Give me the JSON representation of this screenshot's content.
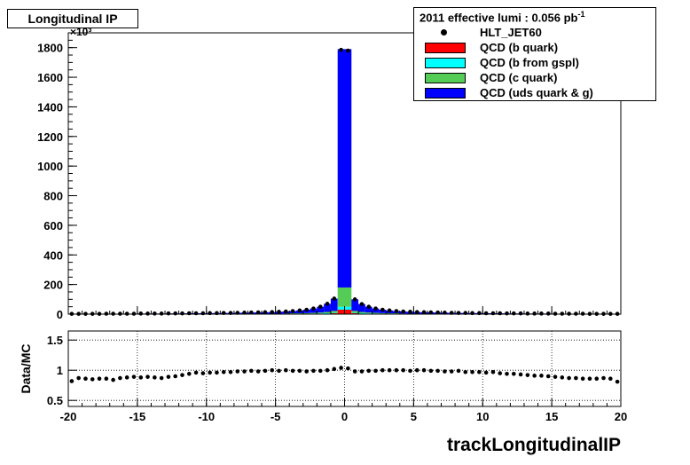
{
  "title": "Longitudinal IP",
  "legend": {
    "header_text": "2011 effective lumi : 0.056  pb",
    "header_exp": "-1",
    "items": [
      {
        "label": "HLT_JET60",
        "kind": "marker",
        "color": "#000000"
      },
      {
        "label": "QCD (b quark)",
        "kind": "fill",
        "color": "#ff0000"
      },
      {
        "label": "QCD (b from gspl)",
        "kind": "fill",
        "color": "#00ffff"
      },
      {
        "label": "QCD (c quark)",
        "kind": "fill",
        "color": "#55cc55"
      },
      {
        "label": "QCD (uds quark & g)",
        "kind": "fill",
        "color": "#0000ff"
      }
    ]
  },
  "chart_data": [
    {
      "type": "bar",
      "subtype": "stacked-histogram-with-data-points",
      "xlabel": "",
      "ylabel": "",
      "y_multiplier": "×10³",
      "ylim": [
        0,
        1900
      ],
      "yticks": [
        0,
        200,
        400,
        600,
        800,
        1000,
        1200,
        1400,
        1600,
        1800
      ],
      "xlim": [
        -20,
        20
      ],
      "log_scale": false,
      "bins": {
        "centers": [
          -19.75,
          -19.25,
          -18.75,
          -18.25,
          -17.75,
          -17.25,
          -16.75,
          -16.25,
          -15.75,
          -15.25,
          -14.75,
          -14.25,
          -13.75,
          -13.25,
          -12.75,
          -12.25,
          -11.75,
          -11.25,
          -10.75,
          -10.25,
          -9.75,
          -9.25,
          -8.75,
          -8.25,
          -7.75,
          -7.25,
          -6.75,
          -6.25,
          -5.75,
          -5.25,
          -4.75,
          -4.25,
          -3.75,
          -3.25,
          -2.75,
          -2.25,
          -1.75,
          -1.25,
          -0.75,
          -0.25,
          0.25,
          0.75,
          1.25,
          1.75,
          2.25,
          2.75,
          3.25,
          3.75,
          4.25,
          4.75,
          5.25,
          5.75,
          6.25,
          6.75,
          7.25,
          7.75,
          8.25,
          8.75,
          9.25,
          9.75,
          10.25,
          10.75,
          11.25,
          11.75,
          12.25,
          12.75,
          13.25,
          13.75,
          14.25,
          14.75,
          15.25,
          15.75,
          16.25,
          16.75,
          17.25,
          17.75,
          18.25,
          18.75,
          19.25,
          19.75
        ],
        "width": 0.5
      },
      "series": [
        {
          "name": "HLT_JET60",
          "style": "points",
          "values": [
            2,
            2,
            2,
            2,
            2,
            3,
            3,
            3,
            3,
            3,
            4,
            4,
            4,
            4,
            5,
            5,
            5,
            6,
            6,
            6,
            7,
            7,
            8,
            8,
            9,
            10,
            11,
            12,
            13,
            14,
            16,
            18,
            21,
            25,
            30,
            38,
            50,
            70,
            105,
            1785,
            1780,
            100,
            68,
            50,
            38,
            30,
            25,
            21,
            18,
            16,
            14,
            13,
            12,
            11,
            10,
            9,
            8,
            8,
            7,
            7,
            6,
            6,
            6,
            5,
            5,
            5,
            4,
            4,
            4,
            4,
            3,
            3,
            3,
            3,
            3,
            2,
            2,
            2,
            2,
            2
          ]
        },
        {
          "name": "QCD (b quark)",
          "style": "stack",
          "color": "#ff0000",
          "values": [
            0,
            0,
            0,
            0,
            0,
            0,
            0,
            0,
            0,
            0,
            0,
            0,
            0,
            0,
            0,
            0,
            0,
            0,
            0,
            0,
            0,
            0,
            0,
            0,
            0,
            0,
            1,
            1,
            1,
            1,
            1,
            1,
            2,
            2,
            2,
            3,
            3,
            4,
            6,
            30,
            30,
            6,
            4,
            3,
            3,
            2,
            2,
            2,
            1,
            1,
            1,
            1,
            1,
            1,
            0,
            0,
            0,
            0,
            0,
            0,
            0,
            0,
            0,
            0,
            0,
            0,
            0,
            0,
            0,
            0,
            0,
            0,
            0,
            0,
            0,
            0,
            0,
            0,
            0,
            0
          ]
        },
        {
          "name": "QCD (b from gspl)",
          "style": "stack",
          "color": "#00ffff",
          "values": [
            0,
            0,
            0,
            0,
            0,
            0,
            0,
            0,
            0,
            0,
            0,
            0,
            0,
            0,
            0,
            0,
            0,
            0,
            0,
            0,
            0,
            0,
            0,
            0,
            0,
            0,
            0,
            0,
            0,
            0,
            0,
            1,
            1,
            1,
            1,
            1,
            2,
            2,
            3,
            20,
            20,
            3,
            2,
            2,
            1,
            1,
            1,
            1,
            1,
            0,
            0,
            0,
            0,
            0,
            0,
            0,
            0,
            0,
            0,
            0,
            0,
            0,
            0,
            0,
            0,
            0,
            0,
            0,
            0,
            0,
            0,
            0,
            0,
            0,
            0,
            0,
            0,
            0,
            0,
            0
          ]
        },
        {
          "name": "QCD (c quark)",
          "style": "stack",
          "color": "#55cc55",
          "values": [
            0,
            0,
            0,
            0,
            0,
            0,
            0,
            0,
            0,
            0,
            0,
            0,
            0,
            1,
            1,
            1,
            1,
            1,
            1,
            1,
            1,
            1,
            1,
            1,
            1,
            1,
            1,
            1,
            2,
            2,
            2,
            2,
            3,
            3,
            4,
            5,
            6,
            9,
            13,
            130,
            130,
            13,
            9,
            6,
            5,
            4,
            3,
            3,
            2,
            2,
            2,
            2,
            1,
            1,
            1,
            1,
            1,
            1,
            1,
            1,
            1,
            1,
            1,
            1,
            1,
            1,
            1,
            1,
            0,
            0,
            0,
            0,
            0,
            0,
            0,
            0,
            0,
            0,
            0,
            0
          ]
        },
        {
          "name": "QCD (uds quark & g)",
          "style": "stack",
          "color": "#0000ff",
          "values": [
            2,
            2,
            2,
            2,
            2,
            3,
            3,
            3,
            3,
            3,
            4,
            4,
            4,
            3,
            4,
            4,
            4,
            5,
            5,
            5,
            6,
            6,
            7,
            7,
            8,
            9,
            9,
            10,
            10,
            11,
            13,
            14,
            15,
            19,
            23,
            29,
            39,
            55,
            83,
            1610,
            1610,
            78,
            53,
            39,
            29,
            23,
            19,
            15,
            14,
            13,
            11,
            10,
            10,
            9,
            9,
            8,
            7,
            7,
            6,
            6,
            5,
            5,
            5,
            4,
            4,
            4,
            3,
            3,
            4,
            4,
            3,
            3,
            3,
            3,
            3,
            2,
            2,
            2,
            2,
            2
          ]
        }
      ]
    },
    {
      "type": "scatter",
      "subtype": "ratio",
      "xlabel": "trackLongitudinalIP",
      "ylabel": "Data/MC",
      "xlim": [
        -20,
        20
      ],
      "ylim": [
        0.4,
        1.65
      ],
      "xticks": [
        -20,
        -15,
        -10,
        -5,
        0,
        5,
        10,
        15,
        20
      ],
      "yticks": [
        0.5,
        1,
        1.5
      ],
      "grid": true,
      "reference_line": 1,
      "series": [
        {
          "name": "Data/MC",
          "values": [
            0.82,
            0.87,
            0.86,
            0.85,
            0.86,
            0.86,
            0.84,
            0.87,
            0.88,
            0.89,
            0.88,
            0.89,
            0.88,
            0.87,
            0.89,
            0.9,
            0.92,
            0.94,
            0.96,
            0.95,
            0.96,
            0.96,
            0.97,
            0.97,
            0.98,
            0.98,
            0.99,
            0.98,
            0.99,
            1.0,
            0.99,
            1.0,
            0.99,
            0.99,
            0.98,
            0.99,
            0.99,
            1.0,
            1.02,
            1.04,
            1.03,
            0.98,
            0.98,
            0.99,
            0.99,
            1.0,
            1.0,
            1.0,
            1.0,
            0.99,
            1.0,
            1.0,
            0.99,
            0.99,
            0.98,
            0.98,
            0.99,
            0.97,
            0.97,
            0.97,
            0.96,
            0.97,
            0.95,
            0.94,
            0.94,
            0.93,
            0.92,
            0.91,
            0.91,
            0.9,
            0.89,
            0.88,
            0.87,
            0.87,
            0.86,
            0.86,
            0.86,
            0.87,
            0.86,
            0.81
          ]
        }
      ]
    }
  ]
}
